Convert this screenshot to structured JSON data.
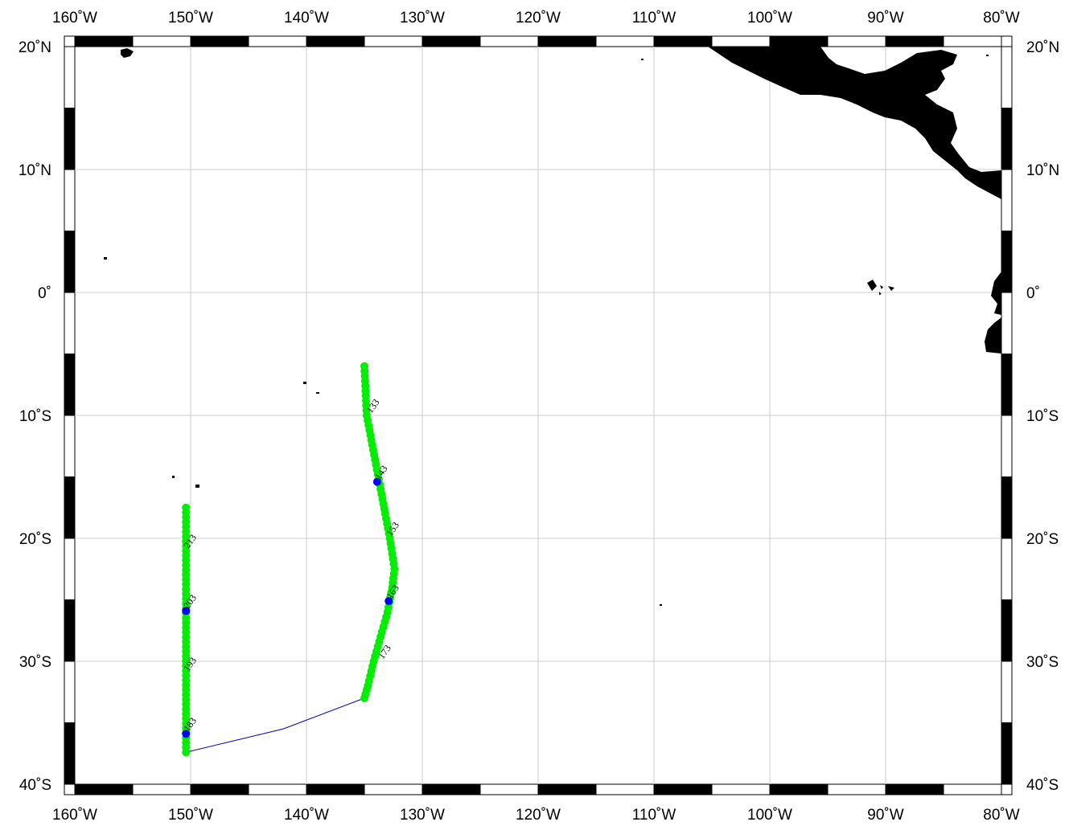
{
  "map": {
    "lon_range": [
      -160,
      -80
    ],
    "lat_range": [
      -40,
      20
    ],
    "top_lon_labels": [
      "160˚W",
      "150˚W",
      "140˚W",
      "130˚W",
      "120˚W",
      "110˚W",
      "100˚W",
      "90˚W",
      "80˚W"
    ],
    "bottom_lon_labels": [
      "160˚W",
      "150˚W",
      "140˚W",
      "130˚W",
      "120˚W",
      "110˚W",
      "100˚W",
      "90˚W",
      "80˚W"
    ],
    "left_lat_labels": [
      "20˚N",
      "10˚N",
      "0˚",
      "10˚S",
      "20˚S",
      "30˚S",
      "40˚S"
    ],
    "right_lat_labels": [
      "20˚N",
      "10˚N",
      "0˚",
      "10˚S",
      "20˚S",
      "30˚S",
      "40˚S"
    ],
    "colors": {
      "land": "#000000",
      "grid": "#cccccc",
      "station": "#00ee00",
      "highlight_station": "#0000ff",
      "transit_line": "#0000cc"
    }
  },
  "station_labels": [
    "133",
    "143",
    "153",
    "163",
    "173",
    "183",
    "193",
    "203",
    "213"
  ],
  "cruise_track": {
    "leg1": [
      [
        -135.0,
        -6.0
      ],
      [
        -134.9,
        -8.0
      ],
      [
        -134.8,
        -10.0
      ],
      [
        -134.4,
        -12.0
      ],
      [
        -134.0,
        -14.0
      ],
      [
        -133.6,
        -16.0
      ],
      [
        -133.2,
        -18.0
      ],
      [
        -132.8,
        -20.0
      ],
      [
        -132.4,
        -22.5
      ],
      [
        -132.6,
        -24.0
      ],
      [
        -133.0,
        -26.0
      ],
      [
        -133.6,
        -28.0
      ],
      [
        -134.2,
        -30.0
      ],
      [
        -134.7,
        -32.0
      ],
      [
        -135.0,
        -33.0
      ]
    ],
    "transit": [
      [
        -135.0,
        -33.0
      ],
      [
        -142.0,
        -35.5
      ],
      [
        -150.4,
        -37.4
      ]
    ],
    "leg2": [
      [
        -150.4,
        -37.4
      ],
      [
        -150.4,
        -17.5
      ]
    ],
    "highlights": [
      [
        -133.9,
        -15.4
      ],
      [
        -132.9,
        -25.1
      ],
      [
        -150.4,
        -25.9
      ],
      [
        -150.4,
        -35.9
      ]
    ],
    "label_positions": [
      {
        "label": "133",
        "lon": -134.6,
        "lat": -10.0
      },
      {
        "label": "143",
        "lon": -133.9,
        "lat": -15.4
      },
      {
        "label": "153",
        "lon": -132.9,
        "lat": -20.0
      },
      {
        "label": "163",
        "lon": -132.9,
        "lat": -25.1
      },
      {
        "label": "173",
        "lon": -133.6,
        "lat": -30.0
      },
      {
        "label": "183",
        "lon": -150.4,
        "lat": -35.9
      },
      {
        "label": "193",
        "lon": -150.4,
        "lat": -31.0
      },
      {
        "label": "203",
        "lon": -150.4,
        "lat": -25.9
      },
      {
        "label": "213",
        "lon": -150.4,
        "lat": -21.0
      }
    ]
  }
}
